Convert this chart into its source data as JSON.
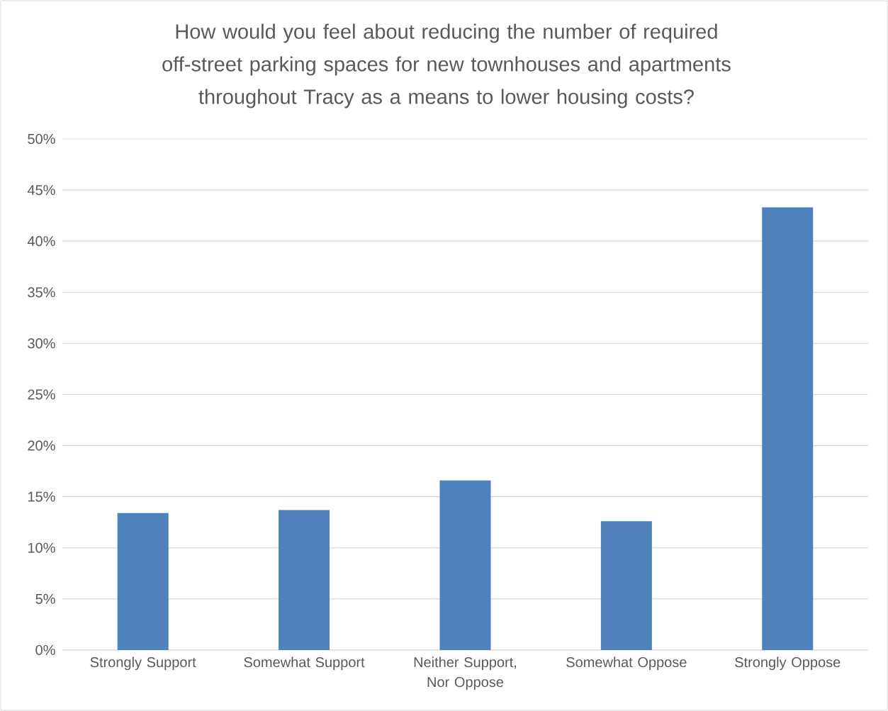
{
  "chart_data": {
    "type": "bar",
    "title": "How would you feel about reducing the number of required off-street parking spaces for new townhouses and apartments throughout Tracy as a means to lower housing costs?",
    "categories": [
      "Strongly Support",
      "Somewhat Support",
      "Neither Support, Nor Oppose",
      "Somewhat Oppose",
      "Strongly Oppose"
    ],
    "values": [
      13.4,
      13.7,
      16.6,
      12.6,
      43.3
    ],
    "color": "#4f81bd",
    "ylim": [
      0,
      50
    ],
    "yticks": [
      {
        "value": 0,
        "label": "0%"
      },
      {
        "value": 5,
        "label": "5%"
      },
      {
        "value": 10,
        "label": "10%"
      },
      {
        "value": 15,
        "label": "15%"
      },
      {
        "value": 20,
        "label": "20%"
      },
      {
        "value": 25,
        "label": "25%"
      },
      {
        "value": 30,
        "label": "30%"
      },
      {
        "value": 35,
        "label": "35%"
      },
      {
        "value": 40,
        "label": "40%"
      },
      {
        "value": 45,
        "label": "45%"
      },
      {
        "value": 50,
        "label": "50%"
      }
    ],
    "grid": "y"
  }
}
